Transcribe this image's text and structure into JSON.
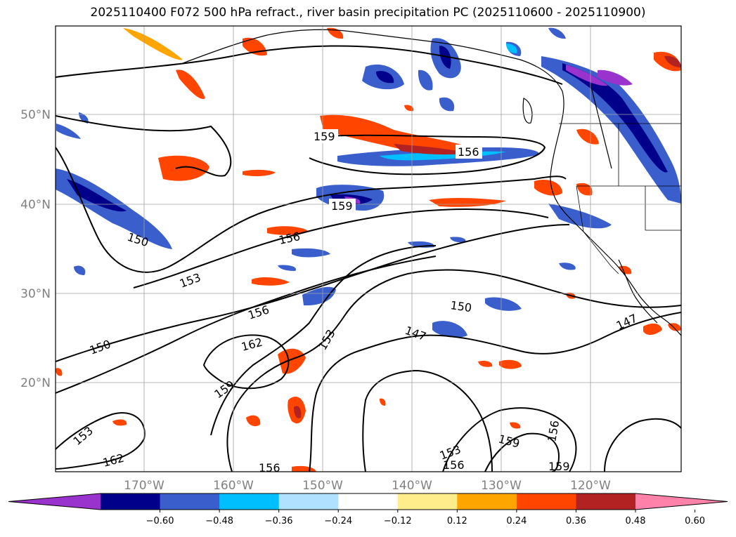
{
  "title": "2025110400 F072 500 hPa refract., river basin precipitation PC (2025110600 - 2025110900)",
  "latitude_labels": [
    "50°N",
    "40°N",
    "30°N",
    "20°N"
  ],
  "longitude_labels": [
    "170°W",
    "160°W",
    "150°W",
    "140°W",
    "130°W",
    "120°W"
  ],
  "contour_labels": [
    "159",
    "156",
    "159",
    "150",
    "156",
    "153",
    "156",
    "150",
    "162",
    "153",
    "159",
    "150",
    "147",
    "147",
    "153",
    "159",
    "156",
    "162",
    "156",
    "153",
    "156",
    "159"
  ],
  "colorbar": {
    "ticks": [
      "−0.60",
      "−0.48",
      "−0.36",
      "−0.24",
      "−0.12",
      "0.12",
      "0.24",
      "0.36",
      "0.48",
      "0.60"
    ],
    "colors": [
      "#9a32cd",
      "#00008b",
      "#3a5fcd",
      "#00bfff",
      "#b0e2ff",
      "#ffffff",
      "#ffec8b",
      "#ffa500",
      "#ff4500",
      "#b22222",
      "#ff82ab"
    ]
  },
  "colors": {
    "contour": "#000000",
    "grid": "#a0a0a0",
    "label_gray": "#808080"
  }
}
